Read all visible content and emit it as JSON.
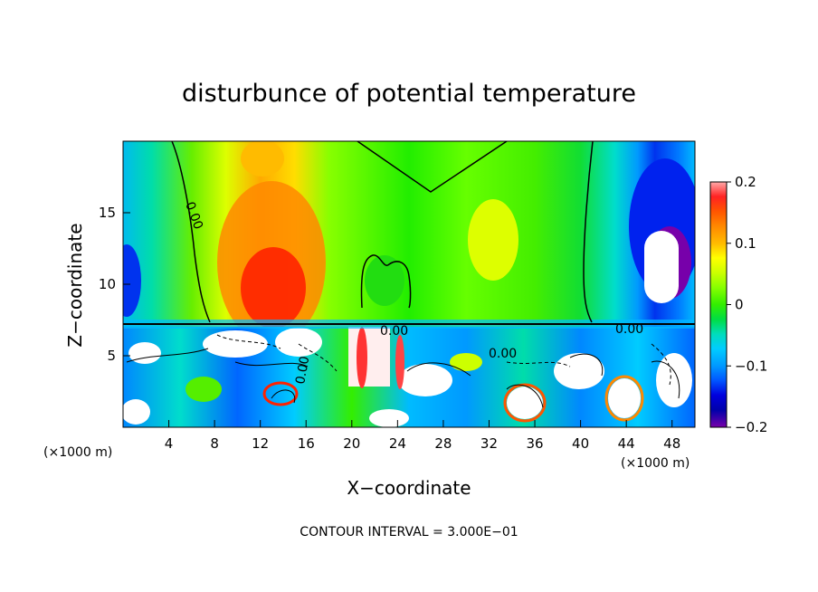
{
  "chart_data": {
    "type": "heatmap",
    "title": "disturbunce of potential temperature",
    "xlabel": "X−coordinate",
    "ylabel": "Z−coordinate",
    "x_unit": "(×1000 m)",
    "y_unit": "(×1000 m)",
    "xlim": [
      0,
      50
    ],
    "ylim": [
      0,
      20
    ],
    "xticks": [
      4,
      8,
      12,
      16,
      20,
      24,
      28,
      32,
      36,
      40,
      44,
      48
    ],
    "yticks": [
      5,
      10,
      15
    ],
    "colorbar": {
      "min": -0.2,
      "max": 0.2,
      "ticks": [
        0.2,
        0.1,
        0,
        -0.1,
        -0.2
      ],
      "tick_labels": [
        "0.2",
        "0.1",
        "0",
        "−0.1",
        "−0.2"
      ],
      "colors": [
        "#ffaaaa",
        "#ff2222",
        "#ff5500",
        "#ff8800",
        "#ffbb00",
        "#ffff00",
        "#ccff00",
        "#88ff00",
        "#33ee00",
        "#00dd44",
        "#00ddbb",
        "#00ccff",
        "#0099ff",
        "#0055ff",
        "#0000dd",
        "#0000aa",
        "#7700aa"
      ]
    },
    "contour_labels": [
      "0.00",
      "0.00",
      "0.00",
      "0.00",
      "0.00"
    ],
    "contour_interval_text": "CONTOUR INTERVAL = 3.000E−01",
    "approx_field_regions": [
      {
        "name": "upper-left-warm-core",
        "x": [
          9,
          17
        ],
        "z": [
          8,
          15
        ],
        "value": 0.15
      },
      {
        "name": "left-edge-cool",
        "x": [
          0,
          3
        ],
        "z": [
          8,
          19
        ],
        "value": -0.08
      },
      {
        "name": "right-cold-core",
        "x": [
          44,
          49
        ],
        "z": [
          8,
          18
        ],
        "value": -0.18
      },
      {
        "name": "upper-middle-neutral",
        "x": [
          18,
          40
        ],
        "z": [
          8,
          20
        ],
        "value": 0.02
      },
      {
        "name": "lower-turbulent-layer",
        "x": [
          0,
          50
        ],
        "z": [
          0,
          7.5
        ],
        "value": -0.05
      }
    ]
  }
}
